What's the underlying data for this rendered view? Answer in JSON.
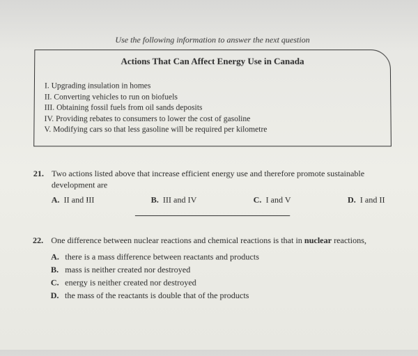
{
  "instruction": "Use the following information to answer the next question",
  "box": {
    "title": "Actions That Can Affect Energy Use in Canada",
    "items": [
      "I. Upgrading insulation in homes",
      "II. Converting vehicles to run on biofuels",
      "III. Obtaining fossil fuels from oil sands deposits",
      "IV. Providing rebates to consumers to lower the cost of gasoline",
      "V. Modifying cars so that less gasoline will be required per kilometre"
    ]
  },
  "q21": {
    "num": "21.",
    "text": "Two actions listed above that increase efficient energy use and therefore promote sustainable development are",
    "opts": {
      "a": {
        "letter": "A.",
        "text": "II and III"
      },
      "b": {
        "letter": "B.",
        "text": "III and IV"
      },
      "c": {
        "letter": "C.",
        "text": "I and V"
      },
      "d": {
        "letter": "D.",
        "text": "I and II"
      }
    }
  },
  "q22": {
    "num": "22.",
    "text_before": "One difference between nuclear reactions and chemical reactions is that in ",
    "text_bold": "nuclear",
    "text_after": " reactions,",
    "opts": {
      "a": {
        "letter": "A.",
        "text": "there is a mass difference between reactants and products"
      },
      "b": {
        "letter": "B.",
        "text": "mass is neither created nor destroyed"
      },
      "c": {
        "letter": "C.",
        "text": "energy is neither created nor destroyed"
      },
      "d": {
        "letter": "D.",
        "text": "the mass of the reactants is double that of the products"
      }
    }
  }
}
